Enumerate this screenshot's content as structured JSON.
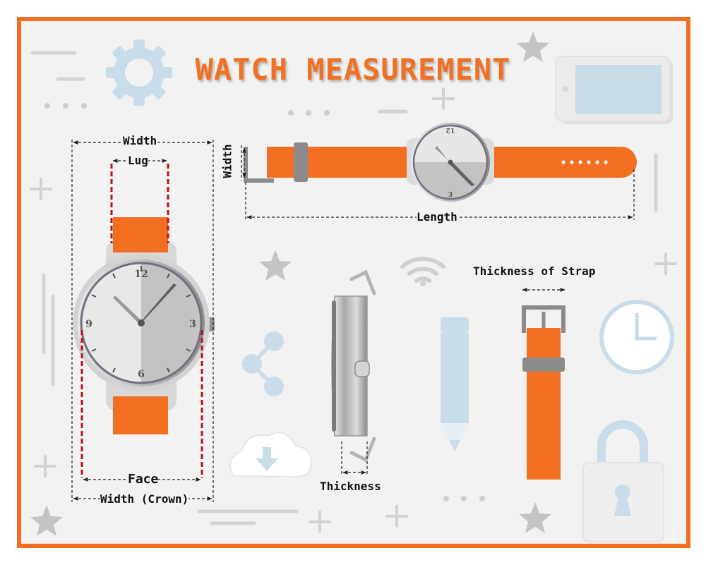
{
  "title": "WATCH MEASUREMENT",
  "labels": {
    "width_top": "Width",
    "lug": "Lug",
    "strap_width": "Width",
    "length": "Length",
    "thickness_of_strap": "Thickness of Strap",
    "face": "Face",
    "width_crown": "Width (Crown)",
    "thickness": "Thickness"
  },
  "dial_numerals": {
    "n12": "12",
    "n3": "3",
    "n6": "6",
    "n9": "9"
  },
  "colors": {
    "frame": "#f26f22",
    "strap": "#f26f22",
    "title": "#f07124",
    "background": "#f2f2f2",
    "decor_blue": "#c9dcea",
    "decor_gray": "#cfcfcf",
    "dim_line": "#222222",
    "lug_guide": "#b5121b"
  },
  "decor_icons": [
    "gear-icon",
    "star-icon",
    "phone-icon",
    "wifi-icon",
    "share-icon",
    "cloud-download-icon",
    "pencil-icon",
    "clock-icon",
    "padlock-icon",
    "plus-icon"
  ]
}
